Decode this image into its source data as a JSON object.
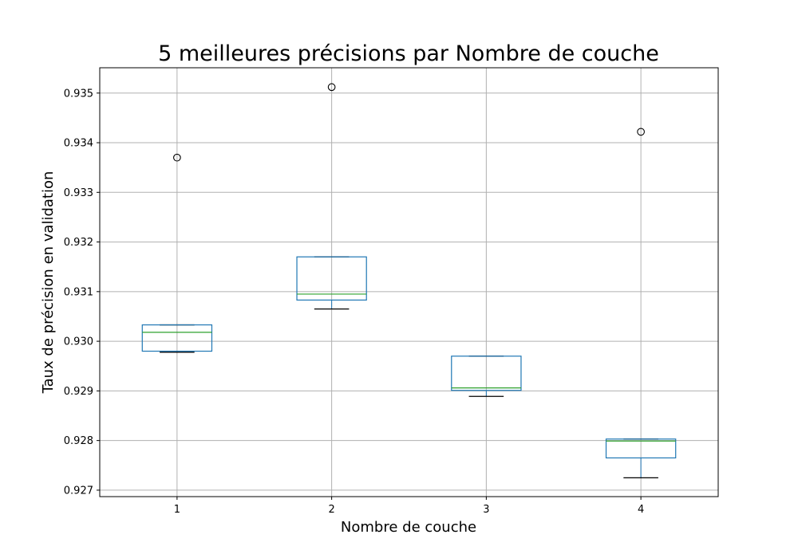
{
  "chart_data": {
    "type": "box",
    "title": "5 meilleures précisions par Nombre de couche",
    "xlabel": "Nombre de couche",
    "ylabel": "Taux de précision en validation",
    "categories": [
      "1",
      "2",
      "3",
      "4"
    ],
    "ylim": [
      0.92687,
      0.93551
    ],
    "yticks": [
      0.927,
      0.928,
      0.929,
      0.93,
      0.931,
      0.932,
      0.933,
      0.934,
      0.935
    ],
    "ytick_labels": [
      "0.927",
      "0.928",
      "0.929",
      "0.930",
      "0.931",
      "0.932",
      "0.933",
      "0.934",
      "0.935"
    ],
    "grid": true,
    "boxes": [
      {
        "category": "1",
        "whisker_low": 0.92978,
        "q1": 0.9298,
        "median": 0.93018,
        "q3": 0.93033,
        "whisker_high": 0.93033,
        "outliers": [
          0.9337
        ]
      },
      {
        "category": "2",
        "whisker_low": 0.93065,
        "q1": 0.93083,
        "median": 0.93095,
        "q3": 0.9317,
        "whisker_high": 0.9317,
        "outliers": [
          0.93512
        ]
      },
      {
        "category": "3",
        "whisker_low": 0.92889,
        "q1": 0.92901,
        "median": 0.92906,
        "q3": 0.9297,
        "whisker_high": 0.9297,
        "outliers": []
      },
      {
        "category": "4",
        "whisker_low": 0.92725,
        "q1": 0.92765,
        "median": 0.92799,
        "q3": 0.92803,
        "whisker_high": 0.92803,
        "outliers": [
          0.93422
        ]
      }
    ],
    "colors": {
      "box": "#1f77b4",
      "median": "#2ca02c",
      "whisker": "#000000",
      "grid": "#b0b0b0"
    }
  }
}
